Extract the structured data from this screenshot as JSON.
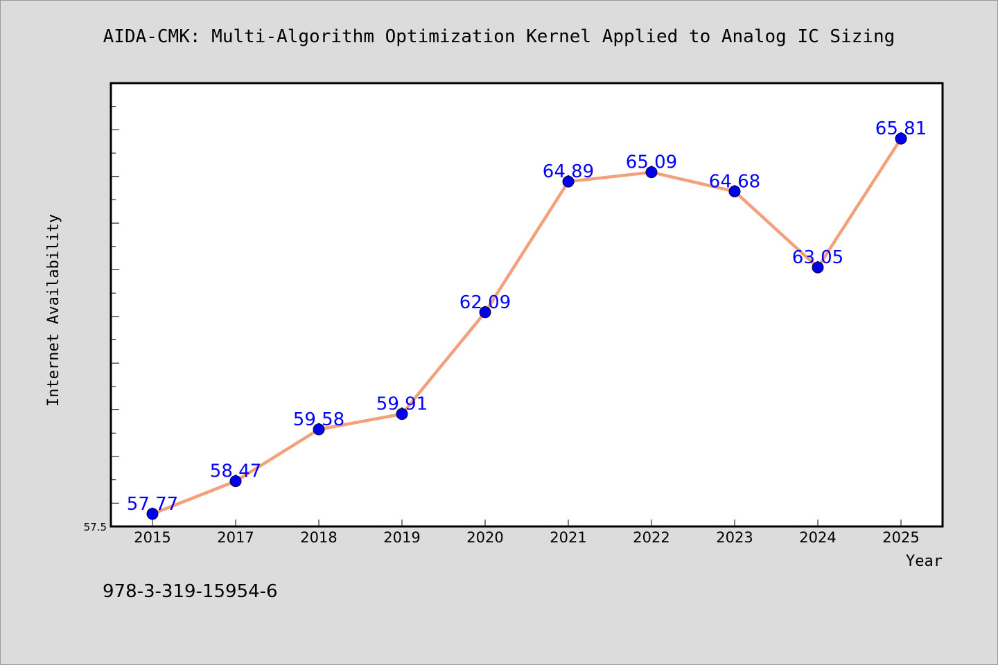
{
  "chart_data": {
    "type": "line",
    "title": "AIDA-CMK: Multi-Algorithm Optimization Kernel Applied to Analog IC Sizing",
    "xlabel": "Year",
    "ylabel": "Internet Availability",
    "categories": [
      "2015",
      "2017",
      "2018",
      "2019",
      "2020",
      "2021",
      "2022",
      "2023",
      "2024",
      "2025"
    ],
    "series": [
      {
        "values": [
          57.77,
          58.47,
          59.58,
          59.91,
          62.09,
          64.89,
          65.09,
          64.68,
          63.05,
          65.81
        ],
        "labels": [
          "57.77",
          "58.47",
          "59.58",
          "59.91",
          "62.09",
          "64.89",
          "65.09",
          "64.68",
          "63.05",
          "65.81"
        ]
      }
    ],
    "ylim": [
      57.5,
      67.0
    ],
    "yticks": [
      {
        "value": 57.5,
        "label": "57.5"
      }
    ],
    "grid": false,
    "legend": "none",
    "colors": {
      "line": "#f4a07c",
      "marker": "#0000ee",
      "marker_edge": "#000033",
      "data_label": "#0000ff",
      "plot_background": "#ffffff",
      "page_background": "#dcdcdc"
    }
  },
  "footnote": "978-3-319-15954-6"
}
